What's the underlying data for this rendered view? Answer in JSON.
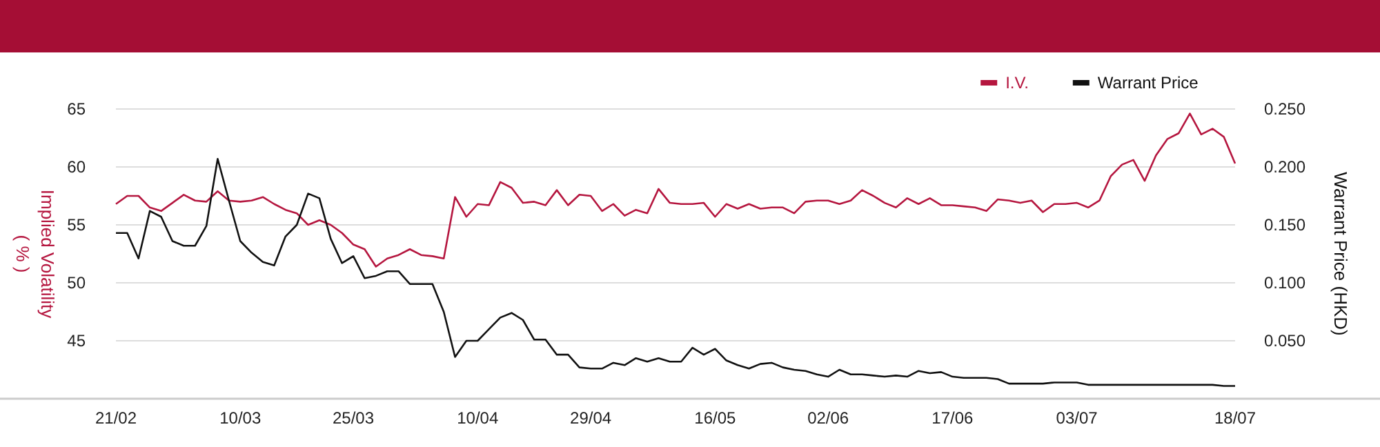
{
  "chart_data": {
    "type": "line",
    "ylabel": "Implied Volatility\n( % )",
    "y2label": "Warrant Price (HKD)",
    "categories": [
      "21/02",
      null,
      null,
      null,
      null,
      null,
      null,
      null,
      null,
      null,
      null,
      "10/03",
      null,
      null,
      null,
      null,
      null,
      null,
      null,
      null,
      null,
      "25/03",
      null,
      null,
      null,
      null,
      null,
      null,
      null,
      null,
      null,
      null,
      "10/04",
      null,
      null,
      null,
      null,
      null,
      null,
      null,
      null,
      null,
      "29/04",
      null,
      null,
      null,
      null,
      null,
      null,
      null,
      null,
      null,
      null,
      "16/05",
      null,
      null,
      null,
      null,
      null,
      null,
      null,
      null,
      null,
      "02/06",
      null,
      null,
      null,
      null,
      null,
      null,
      null,
      null,
      null,
      null,
      "17/06",
      null,
      null,
      null,
      null,
      null,
      null,
      null,
      null,
      null,
      null,
      "03/07",
      null,
      null,
      null,
      null,
      null,
      null,
      null,
      null,
      null,
      null,
      null,
      null,
      null,
      "18/07"
    ],
    "series": [
      {
        "name": "I.V.",
        "color": "#b5163f",
        "values": [
          56.8,
          57.5,
          57.5,
          56.5,
          56.2,
          56.9,
          57.6,
          57.1,
          57.0,
          57.9,
          57.1,
          57.0,
          57.1,
          57.4,
          56.8,
          56.3,
          56.0,
          55.0,
          55.4,
          55.0,
          54.3,
          53.3,
          52.9,
          51.4,
          52.1,
          52.4,
          52.9,
          52.4,
          52.3,
          52.1,
          57.4,
          55.7,
          56.8,
          56.7,
          58.7,
          58.2,
          56.9,
          57.0,
          56.7,
          58.0,
          56.7,
          57.6,
          57.5,
          56.2,
          56.8,
          55.8,
          56.3,
          56.0,
          58.1,
          56.9,
          56.8,
          56.8,
          56.9,
          55.7,
          56.8,
          56.4,
          56.8,
          56.4,
          56.5,
          56.5,
          56.0,
          57.0,
          57.1,
          57.1,
          56.8,
          57.1,
          58.0,
          57.5,
          56.9,
          56.5,
          57.3,
          56.8,
          57.3,
          56.7,
          56.7,
          56.6,
          56.5,
          56.2,
          57.2,
          57.1,
          56.9,
          57.1,
          56.1,
          56.8,
          56.8,
          56.9,
          56.5,
          57.1,
          59.2,
          60.2,
          60.6,
          58.8,
          61.0,
          62.4,
          62.9,
          64.6,
          62.8,
          63.3,
          62.6,
          60.3
        ]
      },
      {
        "name": "Warrant Price",
        "color": "#111111",
        "axis": "y2",
        "values": [
          0.143,
          0.143,
          0.121,
          0.162,
          0.157,
          0.136,
          0.132,
          0.132,
          0.149,
          0.207,
          0.171,
          0.136,
          0.126,
          0.118,
          0.115,
          0.14,
          0.15,
          0.177,
          0.173,
          0.138,
          0.117,
          0.123,
          0.104,
          0.106,
          0.11,
          0.11,
          0.099,
          0.099,
          0.099,
          0.075,
          0.036,
          0.05,
          0.05,
          0.06,
          0.07,
          0.074,
          0.068,
          0.051,
          0.051,
          0.038,
          0.038,
          0.027,
          0.026,
          0.026,
          0.031,
          0.029,
          0.035,
          0.032,
          0.035,
          0.032,
          0.032,
          0.044,
          0.038,
          0.043,
          0.033,
          0.029,
          0.026,
          0.03,
          0.031,
          0.027,
          0.025,
          0.024,
          0.021,
          0.019,
          0.025,
          0.021,
          0.021,
          0.02,
          0.019,
          0.02,
          0.019,
          0.024,
          0.022,
          0.023,
          0.019,
          0.018,
          0.018,
          0.018,
          0.017,
          0.013,
          0.013,
          0.013,
          0.013,
          0.014,
          0.014,
          0.014,
          0.012,
          0.012,
          0.012,
          0.012,
          0.012,
          0.012,
          0.012,
          0.012,
          0.012,
          0.012,
          0.012,
          0.012,
          0.011,
          0.011
        ]
      }
    ],
    "ylim": [
      40,
      65
    ],
    "yticks": [
      45,
      50,
      55,
      60,
      65
    ],
    "y2lim": [
      0,
      0.25
    ],
    "y2ticks": [
      {
        "value": 0.05,
        "label": "0.050"
      },
      {
        "value": 0.1,
        "label": "0.100"
      },
      {
        "value": 0.15,
        "label": "0.150"
      },
      {
        "value": 0.2,
        "label": "0.200"
      },
      {
        "value": 0.25,
        "label": "0.250"
      }
    ],
    "grid": "y",
    "legend": "top right",
    "marker": "none",
    "line_style": "solid"
  }
}
